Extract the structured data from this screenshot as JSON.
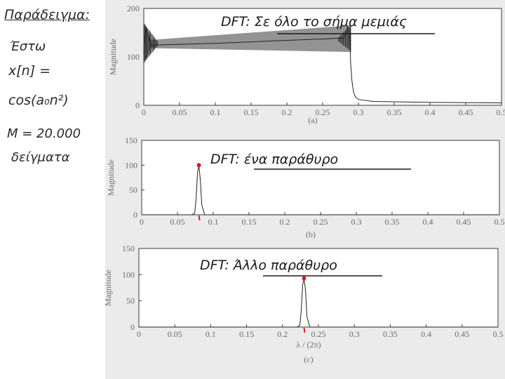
{
  "notes": {
    "line1": "Παράδειγμα:",
    "line2": "Έστω",
    "line3": "x[n] =",
    "line4": "cos(a₀n²)",
    "line5": "M = 20.000",
    "line6": "δείγματα"
  },
  "colors": {
    "page": "#ebebeb",
    "curve": "#222222",
    "marker": "#d81b1b",
    "ink": "#1a1a1a"
  },
  "chart_data": [
    {
      "type": "line",
      "panel": "(a)",
      "annotation": "DFT: Σε όλο το σήμα μεμιάς",
      "ylabel": "Magnitude",
      "xlabel": "",
      "xlim": [
        0,
        0.5
      ],
      "ylim": [
        0,
        200
      ],
      "xticks": [
        "0",
        "0.05",
        "0.1",
        "0.15",
        "0.2",
        "0.25",
        "0.3",
        "0.35",
        "0.4",
        "0.45",
        "0.5"
      ],
      "yticks": [
        "0",
        "100",
        "200"
      ],
      "series": [
        {
          "x": [
            0,
            0.003,
            0.01,
            0.05,
            0.1,
            0.15,
            0.2,
            0.25,
            0.28,
            0.285,
            0.288,
            0.289,
            0.291,
            0.293,
            0.296,
            0.3,
            0.32,
            0.4,
            0.5
          ],
          "y": [
            105,
            160,
            124,
            126,
            128,
            131,
            134,
            137,
            139,
            162,
            145,
            90,
            50,
            28,
            17,
            12,
            8,
            6,
            5
          ]
        }
      ],
      "envelope": {
        "x": [
          0,
          0.01,
          0.29
        ],
        "upper": [
          172,
          135,
          165
        ],
        "lower": [
          85,
          118,
          110
        ]
      }
    },
    {
      "type": "line",
      "panel": "(b)",
      "annotation": "DFT: ένα παράθυρο",
      "ylabel": "Magnitude",
      "xlabel": "",
      "xlim": [
        0,
        0.5
      ],
      "ylim": [
        0,
        150
      ],
      "xticks": [
        "0",
        "0.05",
        "0.1",
        "0.15",
        "0.2",
        "0.25",
        "0.3",
        "0.35",
        "0.4",
        "0.45",
        "0.5"
      ],
      "yticks": [
        "0",
        "50",
        "100",
        "150"
      ],
      "series": [
        {
          "x": [
            0,
            0.07,
            0.074,
            0.076,
            0.078,
            0.08,
            0.082,
            0.084,
            0.088,
            0.5
          ],
          "y": [
            0,
            0,
            3,
            30,
            85,
            100,
            70,
            20,
            0,
            0
          ]
        }
      ],
      "peak": {
        "x": 0.08,
        "y": 100
      }
    },
    {
      "type": "line",
      "panel": "(c)",
      "annotation": "DFT: Άλλο παράθυρο",
      "ylabel": "Magnitude",
      "xlabel": "λ / (2π)",
      "xlim": [
        0,
        0.5
      ],
      "ylim": [
        0,
        150
      ],
      "xticks": [
        "0",
        "0.05",
        "0.1",
        "0.15",
        "0.2",
        "0.25",
        "0.3",
        "0.35",
        "0.4",
        "0.45",
        "0.5"
      ],
      "yticks": [
        "0",
        "50",
        "100",
        "150"
      ],
      "series": [
        {
          "x": [
            0,
            0.22,
            0.224,
            0.226,
            0.228,
            0.23,
            0.232,
            0.234,
            0.238,
            0.5
          ],
          "y": [
            0,
            0,
            3,
            30,
            80,
            93,
            70,
            20,
            0,
            0
          ]
        }
      ],
      "peak": {
        "x": 0.23,
        "y": 93
      }
    }
  ]
}
